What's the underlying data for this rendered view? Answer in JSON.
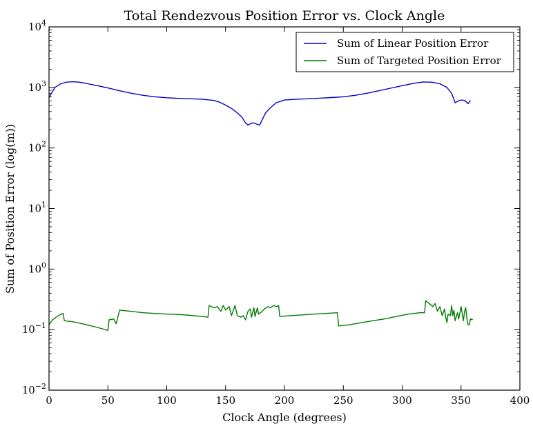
{
  "chart_data": {
    "type": "line",
    "title": "Total Rendezvous Position Error vs. Clock Angle",
    "xlabel": "Clock Angle (degrees)",
    "ylabel": "Sum of Position Error (log(m))",
    "xlim": [
      0,
      400
    ],
    "ylim": [
      0.01,
      10000
    ],
    "yscale": "log",
    "grid": false,
    "legend_position": "top-right",
    "x_ticks": [
      {
        "value": 0,
        "label": "0"
      },
      {
        "value": 50,
        "label": "50"
      },
      {
        "value": 100,
        "label": "100"
      },
      {
        "value": 150,
        "label": "150"
      },
      {
        "value": 200,
        "label": "200"
      },
      {
        "value": 250,
        "label": "250"
      },
      {
        "value": 300,
        "label": "300"
      },
      {
        "value": 350,
        "label": "350"
      },
      {
        "value": 400,
        "label": "400"
      }
    ],
    "y_ticks": [
      {
        "value": 0.01,
        "base": "10",
        "exp": "−2"
      },
      {
        "value": 0.1,
        "base": "10",
        "exp": "−1"
      },
      {
        "value": 1,
        "base": "10",
        "exp": "0"
      },
      {
        "value": 10,
        "base": "10",
        "exp": "1"
      },
      {
        "value": 100,
        "base": "10",
        "exp": "2"
      },
      {
        "value": 1000,
        "base": "10",
        "exp": "3"
      },
      {
        "value": 10000,
        "base": "10",
        "exp": "4"
      }
    ],
    "series": [
      {
        "name": "Sum of Linear Position Error",
        "color": "#0000cc",
        "points": [
          [
            0,
            680
          ],
          [
            5,
            1000
          ],
          [
            10,
            1150
          ],
          [
            15,
            1220
          ],
          [
            20,
            1240
          ],
          [
            25,
            1225
          ],
          [
            30,
            1180
          ],
          [
            40,
            1080
          ],
          [
            50,
            980
          ],
          [
            60,
            880
          ],
          [
            70,
            800
          ],
          [
            80,
            740
          ],
          [
            90,
            700
          ],
          [
            100,
            675
          ],
          [
            110,
            660
          ],
          [
            120,
            650
          ],
          [
            130,
            640
          ],
          [
            140,
            610
          ],
          [
            145,
            570
          ],
          [
            150,
            510
          ],
          [
            155,
            450
          ],
          [
            160,
            380
          ],
          [
            164,
            320
          ],
          [
            167,
            260
          ],
          [
            169,
            240
          ],
          [
            171,
            250
          ],
          [
            173,
            260
          ],
          [
            175,
            255
          ],
          [
            177,
            245
          ],
          [
            179,
            240
          ],
          [
            181,
            290
          ],
          [
            184,
            380
          ],
          [
            188,
            460
          ],
          [
            193,
            560
          ],
          [
            200,
            620
          ],
          [
            210,
            640
          ],
          [
            220,
            650
          ],
          [
            230,
            665
          ],
          [
            240,
            680
          ],
          [
            250,
            700
          ],
          [
            260,
            740
          ],
          [
            270,
            800
          ],
          [
            280,
            880
          ],
          [
            290,
            970
          ],
          [
            300,
            1070
          ],
          [
            310,
            1170
          ],
          [
            318,
            1230
          ],
          [
            325,
            1220
          ],
          [
            332,
            1150
          ],
          [
            338,
            1000
          ],
          [
            342,
            800
          ],
          [
            345,
            560
          ],
          [
            348,
            600
          ],
          [
            350,
            620
          ],
          [
            353,
            610
          ],
          [
            356,
            540
          ],
          [
            358,
            610
          ]
        ]
      },
      {
        "name": "Sum of Targeted Position Error",
        "color": "#007a00",
        "points": [
          [
            0,
            0.12
          ],
          [
            3,
            0.145
          ],
          [
            6,
            0.16
          ],
          [
            9,
            0.175
          ],
          [
            12,
            0.185
          ],
          [
            13,
            0.14
          ],
          [
            20,
            0.135
          ],
          [
            30,
            0.123
          ],
          [
            40,
            0.11
          ],
          [
            50,
            0.097
          ],
          [
            51,
            0.145
          ],
          [
            55,
            0.15
          ],
          [
            57,
            0.125
          ],
          [
            60,
            0.21
          ],
          [
            70,
            0.2
          ],
          [
            80,
            0.19
          ],
          [
            90,
            0.185
          ],
          [
            100,
            0.18
          ],
          [
            110,
            0.178
          ],
          [
            120,
            0.172
          ],
          [
            130,
            0.165
          ],
          [
            135,
            0.16
          ],
          [
            136,
            0.25
          ],
          [
            140,
            0.23
          ],
          [
            143,
            0.24
          ],
          [
            146,
            0.2
          ],
          [
            148,
            0.25
          ],
          [
            150,
            0.21
          ],
          [
            153,
            0.24
          ],
          [
            155,
            0.17
          ],
          [
            158,
            0.25
          ],
          [
            160,
            0.17
          ],
          [
            163,
            0.16
          ],
          [
            165,
            0.17
          ],
          [
            167,
            0.145
          ],
          [
            169,
            0.2
          ],
          [
            171,
            0.22
          ],
          [
            172,
            0.16
          ],
          [
            174,
            0.23
          ],
          [
            175,
            0.165
          ],
          [
            177,
            0.23
          ],
          [
            178,
            0.18
          ],
          [
            181,
            0.2
          ],
          [
            183,
            0.22
          ],
          [
            186,
            0.24
          ],
          [
            188,
            0.23
          ],
          [
            191,
            0.25
          ],
          [
            193,
            0.24
          ],
          [
            195,
            0.25
          ],
          [
            196,
            0.165
          ],
          [
            205,
            0.17
          ],
          [
            215,
            0.175
          ],
          [
            225,
            0.18
          ],
          [
            235,
            0.185
          ],
          [
            245,
            0.19
          ],
          [
            246,
            0.115
          ],
          [
            255,
            0.12
          ],
          [
            265,
            0.13
          ],
          [
            275,
            0.14
          ],
          [
            285,
            0.15
          ],
          [
            295,
            0.165
          ],
          [
            305,
            0.18
          ],
          [
            315,
            0.19
          ],
          [
            319,
            0.19
          ],
          [
            320,
            0.3
          ],
          [
            323,
            0.27
          ],
          [
            326,
            0.24
          ],
          [
            328,
            0.27
          ],
          [
            330,
            0.2
          ],
          [
            332,
            0.24
          ],
          [
            334,
            0.17
          ],
          [
            336,
            0.22
          ],
          [
            337,
            0.16
          ],
          [
            338,
            0.13
          ],
          [
            339,
            0.18
          ],
          [
            341,
            0.17
          ],
          [
            342,
            0.25
          ],
          [
            343,
            0.17
          ],
          [
            344,
            0.21
          ],
          [
            345,
            0.14
          ],
          [
            347,
            0.19
          ],
          [
            348,
            0.15
          ],
          [
            350,
            0.24
          ],
          [
            352,
            0.14
          ],
          [
            353,
            0.2
          ],
          [
            354,
            0.23
          ],
          [
            355,
            0.15
          ],
          [
            356,
            0.12
          ],
          [
            357,
            0.12
          ],
          [
            358,
            0.15
          ],
          [
            360,
            0.145
          ]
        ]
      }
    ]
  }
}
